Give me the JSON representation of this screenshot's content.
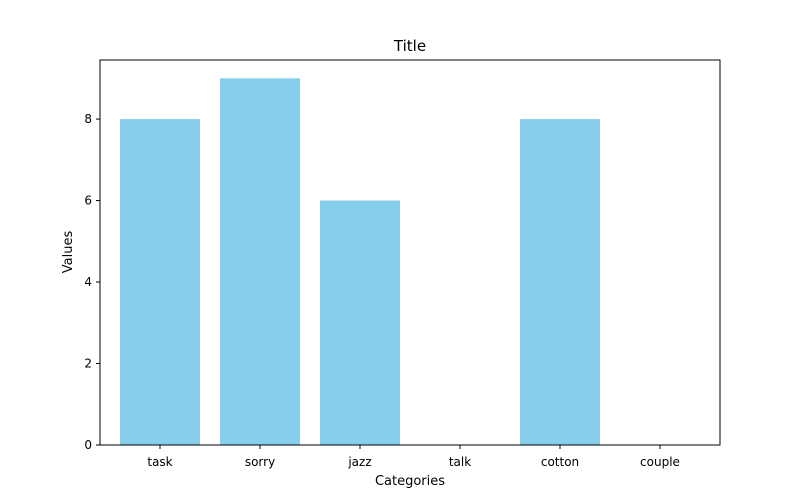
{
  "chart_data": {
    "type": "bar",
    "title": "Title",
    "xlabel": "Categories",
    "ylabel": "Values",
    "categories": [
      "task",
      "sorry",
      "jazz",
      "talk",
      "cotton",
      "couple"
    ],
    "values": [
      8,
      9,
      6,
      0,
      8,
      0
    ],
    "ylim": [
      0,
      9.45
    ],
    "yticks": [
      "0",
      "2",
      "4",
      "6",
      "8"
    ],
    "grid": false,
    "bar_color": "#87CEEB"
  }
}
